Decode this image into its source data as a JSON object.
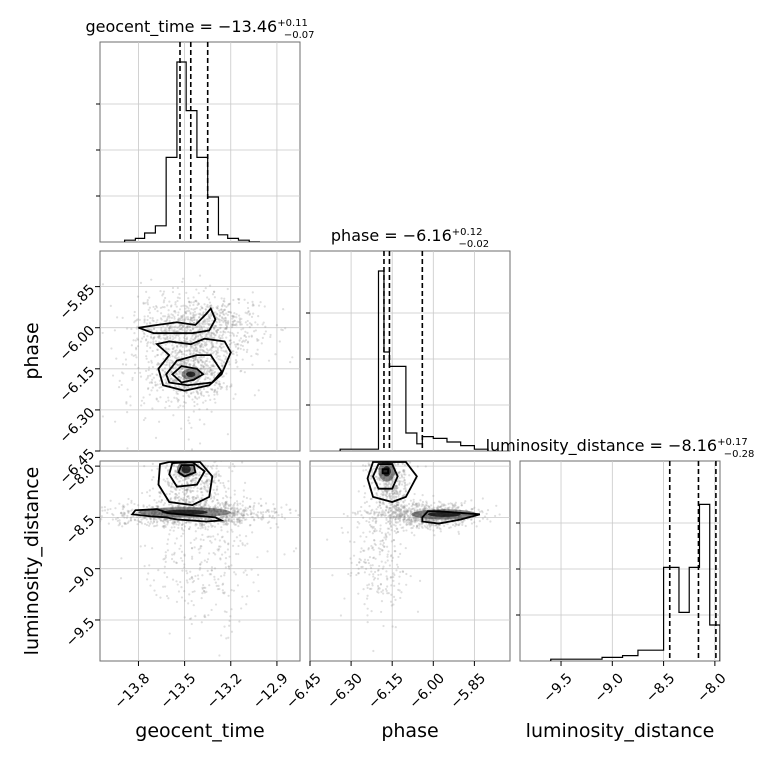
{
  "chart_data": {
    "type": "corner",
    "parameters": [
      "geocent_time",
      "phase",
      "luminosity_distance"
    ],
    "axis_labels": {
      "x": [
        "geocent_time",
        "phase",
        "luminosity_distance"
      ],
      "y": [
        "phase",
        "luminosity_distance"
      ]
    },
    "ranges": {
      "geocent_time": [
        -14.05,
        -12.75
      ],
      "phase": [
        -6.45,
        -5.72
      ],
      "luminosity_distance": [
        -9.9,
        -7.95
      ]
    },
    "ticks": {
      "geocent_time": [
        -13.8,
        -13.5,
        -13.2,
        -12.9
      ],
      "phase": [
        -6.45,
        -6.3,
        -6.15,
        -6.0,
        -5.85
      ],
      "luminosity_distance": [
        -9.5,
        -9.0,
        -8.5,
        -8.0
      ]
    },
    "tick_labels": {
      "geocent_time": [
        "−13.8",
        "−13.5",
        "−13.2",
        "−12.9"
      ],
      "phase": [
        "−6.45",
        "−6.30",
        "−6.15",
        "−6.00",
        "−5.85"
      ],
      "phase_y": [
        "−5.85",
        "−6.00",
        "−6.15",
        "−6.30",
        "−6.45"
      ],
      "luminosity_distance": [
        "−9.5",
        "−9.0",
        "−8.5",
        "−8.0"
      ]
    },
    "titles": [
      {
        "param": "geocent_time",
        "main": "geocent_time = −13.46",
        "plus": "+0.11",
        "minus": "−0.07"
      },
      {
        "param": "phase",
        "main": "phase = −6.16",
        "plus": "+0.12",
        "minus": "−0.02"
      },
      {
        "param": "luminosity_distance",
        "main": "luminosity_distance = −8.16",
        "plus": "+0.17",
        "minus": "−0.28"
      }
    ],
    "histograms": {
      "geocent_time": {
        "bin_edges": [
          -13.89,
          -13.82,
          -13.76,
          -13.69,
          -13.62,
          -13.55,
          -13.49,
          -13.42,
          -13.35,
          -13.28,
          -13.22,
          -13.15,
          -13.08,
          -13.01
        ],
        "counts": [
          0.01,
          0.02,
          0.05,
          0.09,
          0.47,
          1.0,
          0.73,
          0.47,
          0.25,
          0.04,
          0.02,
          0.01,
          0.0
        ],
        "quantiles": [
          -13.53,
          -13.46,
          -13.35
        ]
      },
      "phase": {
        "bin_edges": [
          -6.34,
          -6.2,
          -6.18,
          -6.16,
          -6.1,
          -6.06,
          -6.04,
          -6.0,
          -5.95,
          -5.9,
          -5.85,
          -5.8
        ],
        "counts": [
          0.01,
          1.0,
          0.55,
          0.47,
          0.1,
          0.04,
          0.08,
          0.07,
          0.05,
          0.03,
          0.01
        ],
        "quantiles": [
          -6.18,
          -6.16,
          -6.04
        ]
      },
      "luminosity_distance": {
        "bin_edges": [
          -9.6,
          -9.2,
          -9.1,
          -8.9,
          -8.75,
          -8.5,
          -8.35,
          -8.25,
          -8.15,
          -8.05,
          -8.0,
          -7.95
        ],
        "counts": [
          0.01,
          0.01,
          0.02,
          0.03,
          0.06,
          0.52,
          0.27,
          0.52,
          0.87,
          0.2,
          0.2
        ],
        "quantiles": [
          -8.44,
          -8.16,
          -7.99
        ]
      }
    },
    "contours": {
      "geocent_time__phase": [
        [
          [
            -13.58,
            -6.17
          ],
          [
            -13.52,
            -6.14
          ],
          [
            -13.42,
            -6.15
          ],
          [
            -13.38,
            -6.17
          ],
          [
            -13.44,
            -6.19
          ],
          [
            -13.52,
            -6.2
          ],
          [
            -13.58,
            -6.17
          ]
        ],
        [
          [
            -13.62,
            -6.17
          ],
          [
            -13.55,
            -6.12
          ],
          [
            -13.42,
            -6.1
          ],
          [
            -13.33,
            -6.1
          ],
          [
            -13.26,
            -6.16
          ],
          [
            -13.32,
            -6.2
          ],
          [
            -13.48,
            -6.21
          ],
          [
            -13.6,
            -6.2
          ],
          [
            -13.62,
            -6.17
          ]
        ],
        [
          [
            -13.68,
            -6.06
          ],
          [
            -13.6,
            -6.05
          ],
          [
            -13.46,
            -6.06
          ],
          [
            -13.37,
            -6.04
          ],
          [
            -13.24,
            -6.05
          ],
          [
            -13.2,
            -6.09
          ],
          [
            -13.26,
            -6.17
          ],
          [
            -13.34,
            -6.21
          ],
          [
            -13.5,
            -6.23
          ],
          [
            -13.64,
            -6.21
          ],
          [
            -13.67,
            -6.15
          ],
          [
            -13.6,
            -6.1
          ],
          [
            -13.68,
            -6.06
          ]
        ],
        [
          [
            -13.8,
            -6.0
          ],
          [
            -13.68,
            -5.99
          ],
          [
            -13.55,
            -5.98
          ],
          [
            -13.43,
            -5.99
          ],
          [
            -13.36,
            -5.95
          ],
          [
            -13.33,
            -5.93
          ],
          [
            -13.3,
            -5.97
          ],
          [
            -13.34,
            -6.01
          ],
          [
            -13.45,
            -6.02
          ],
          [
            -13.58,
            -6.02
          ],
          [
            -13.7,
            -6.02
          ],
          [
            -13.8,
            -6.0
          ]
        ]
      ],
      "geocent_time__luminosity_distance": [
        [
          [
            -13.52,
            -7.99
          ],
          [
            -13.44,
            -7.99
          ],
          [
            -13.43,
            -8.06
          ],
          [
            -13.5,
            -8.1
          ],
          [
            -13.54,
            -8.06
          ],
          [
            -13.52,
            -7.99
          ]
        ],
        [
          [
            -13.58,
            -7.97
          ],
          [
            -13.45,
            -7.96
          ],
          [
            -13.37,
            -8.05
          ],
          [
            -13.42,
            -8.18
          ],
          [
            -13.55,
            -8.2
          ],
          [
            -13.6,
            -8.08
          ],
          [
            -13.58,
            -7.97
          ]
        ],
        [
          [
            -13.66,
            -7.98
          ],
          [
            -13.6,
            -7.96
          ],
          [
            -13.4,
            -7.96
          ],
          [
            -13.32,
            -8.1
          ],
          [
            -13.34,
            -8.3
          ],
          [
            -13.45,
            -8.38
          ],
          [
            -13.6,
            -8.35
          ],
          [
            -13.67,
            -8.18
          ],
          [
            -13.66,
            -7.98
          ]
        ],
        [
          [
            -13.82,
            -8.43
          ],
          [
            -13.68,
            -8.42
          ],
          [
            -13.6,
            -8.46
          ],
          [
            -13.45,
            -8.48
          ],
          [
            -13.3,
            -8.5
          ],
          [
            -13.26,
            -8.53
          ],
          [
            -13.36,
            -8.54
          ],
          [
            -13.55,
            -8.52
          ],
          [
            -13.62,
            -8.5
          ],
          [
            -13.72,
            -8.49
          ],
          [
            -13.84,
            -8.47
          ],
          [
            -13.82,
            -8.43
          ]
        ]
      ],
      "phase__luminosity_distance": [
        [
          [
            -6.185,
            -8.03
          ],
          [
            -6.165,
            -8.03
          ],
          [
            -6.165,
            -8.07
          ],
          [
            -6.185,
            -8.07
          ],
          [
            -6.185,
            -8.03
          ]
        ],
        [
          [
            -6.2,
            -7.98
          ],
          [
            -6.15,
            -7.98
          ],
          [
            -6.13,
            -8.1
          ],
          [
            -6.15,
            -8.22
          ],
          [
            -6.2,
            -8.22
          ],
          [
            -6.22,
            -8.1
          ],
          [
            -6.2,
            -7.98
          ]
        ],
        [
          [
            -6.22,
            -7.96
          ],
          [
            -6.1,
            -7.96
          ],
          [
            -6.06,
            -8.1
          ],
          [
            -6.1,
            -8.3
          ],
          [
            -6.15,
            -8.35
          ],
          [
            -6.22,
            -8.3
          ],
          [
            -6.24,
            -8.12
          ],
          [
            -6.22,
            -7.96
          ]
        ],
        [
          [
            -6.04,
            -8.5
          ],
          [
            -6.02,
            -8.44
          ],
          [
            -5.98,
            -8.44
          ],
          [
            -5.88,
            -8.46
          ],
          [
            -5.83,
            -8.47
          ],
          [
            -5.9,
            -8.52
          ],
          [
            -5.98,
            -8.56
          ],
          [
            -6.04,
            -8.54
          ],
          [
            -6.04,
            -8.5
          ]
        ]
      ]
    },
    "density_peaks": {
      "geocent_time__phase": [
        [
          -13.46,
          -6.17,
          0.06,
          0.02
        ]
      ],
      "geocent_time__luminosity_distance": [
        [
          -13.49,
          -8.03,
          0.06,
          0.08
        ],
        [
          -13.5,
          -8.45,
          0.3,
          0.05
        ]
      ],
      "phase__luminosity_distance": [
        [
          -6.17,
          -8.05,
          0.03,
          0.1
        ],
        [
          -5.96,
          -8.47,
          0.12,
          0.05
        ]
      ]
    },
    "scatter_clouds": {
      "geocent_time__phase": [
        {
          "cx": -13.4,
          "cy": -6.0,
          "sx": 0.2,
          "sy": 0.06,
          "n": 900
        },
        {
          "cx": -13.45,
          "cy": -6.16,
          "sx": 0.12,
          "sy": 0.05,
          "n": 500
        },
        {
          "cx": -13.55,
          "cy": -6.15,
          "sx": 0.2,
          "sy": 0.12,
          "n": 300
        }
      ],
      "geocent_time__luminosity_distance": [
        {
          "cx": -13.45,
          "cy": -8.47,
          "sx": 0.28,
          "sy": 0.06,
          "n": 900
        },
        {
          "cx": -13.45,
          "cy": -8.15,
          "sx": 0.12,
          "sy": 0.18,
          "n": 500
        },
        {
          "cx": -13.38,
          "cy": -8.9,
          "sx": 0.2,
          "sy": 0.35,
          "n": 300
        }
      ],
      "phase__luminosity_distance": [
        {
          "cx": -6.02,
          "cy": -8.48,
          "sx": 0.09,
          "sy": 0.06,
          "n": 800
        },
        {
          "cx": -6.16,
          "cy": -8.15,
          "sx": 0.04,
          "sy": 0.2,
          "n": 500
        },
        {
          "cx": -6.2,
          "cy": -8.9,
          "sx": 0.06,
          "sy": 0.35,
          "n": 250
        }
      ]
    },
    "grid": true
  },
  "colors": {
    "lines": "#000000",
    "frame": "#6e6e6e",
    "grid": "#c8c8c8",
    "scatter": "#8c8c8c",
    "density_dark": "#303030"
  }
}
